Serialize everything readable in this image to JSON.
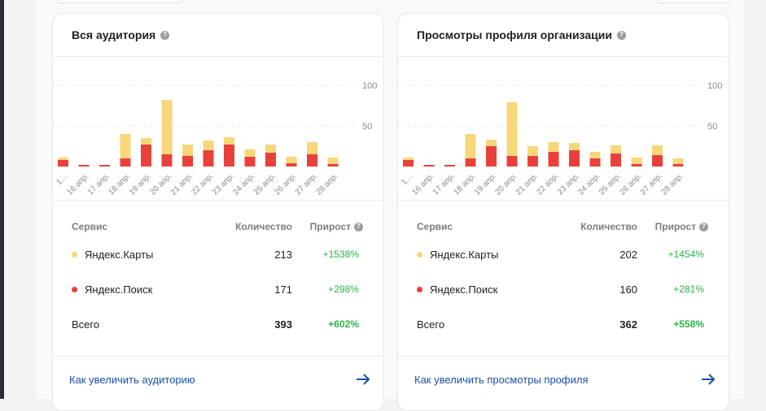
{
  "colors": {
    "yandex_maps": "#f7d77a",
    "yandex_search": "#e8413c",
    "growth": "#2bb34a",
    "link": "#1a4fa8"
  },
  "cards": [
    {
      "title": "Вся аудитория",
      "chart_data": {
        "type": "bar",
        "stacked": true,
        "categories": [
          "1…",
          "16 апр.",
          "17 апр.",
          "18 апр.",
          "19 апр.",
          "20 апр.",
          "21 апр.",
          "22 апр.",
          "23 апр.",
          "24 апр.",
          "25 апр.",
          "26 апр.",
          "27 апр.",
          "28 апр."
        ],
        "series": [
          {
            "key": "search",
            "color": "#e8413c",
            "values": [
              8,
              2,
              2,
              10,
              27,
              15,
              13,
              20,
              27,
              12,
              17,
              4,
              15,
              3
            ]
          },
          {
            "key": "maps",
            "color": "#f7d77a",
            "values": [
              3,
              0,
              0,
              30,
              8,
              67,
              14,
              12,
              9,
              9,
              10,
              8,
              15,
              8
            ]
          }
        ],
        "ylim": [
          0,
          100
        ],
        "yticks": [
          50,
          100
        ],
        "grid": true
      },
      "table": {
        "headers": {
          "service": "Сервис",
          "count": "Количество",
          "growth": "Прирост"
        },
        "rows": [
          {
            "name": "Яндекс.Карты",
            "count": "213",
            "growth": "+1538%",
            "dot": "maps"
          },
          {
            "name": "Яндекс.Поиск",
            "count": "171",
            "growth": "+298%",
            "dot": "search"
          }
        ],
        "total": {
          "name": "Всего",
          "count": "393",
          "growth": "+602%"
        }
      },
      "link_text": "Как увеличить аудиторию"
    },
    {
      "title": "Просмотры профиля организации",
      "chart_data": {
        "type": "bar",
        "stacked": true,
        "categories": [
          "1…",
          "16 апр.",
          "17 апр.",
          "18 апр.",
          "19 апр.",
          "20 апр.",
          "21 апр.",
          "22 апр.",
          "23 апр.",
          "24 апр.",
          "25 апр.",
          "26 апр.",
          "27 апр.",
          "28 апр."
        ],
        "series": [
          {
            "key": "search",
            "color": "#e8413c",
            "values": [
              8,
              2,
              2,
              10,
              25,
              13,
              13,
              18,
              20,
              10,
              16,
              3,
              14,
              3
            ]
          },
          {
            "key": "maps",
            "color": "#f7d77a",
            "values": [
              3,
              0,
              0,
              30,
              8,
              66,
              12,
              12,
              9,
              8,
              10,
              8,
              12,
              7
            ]
          }
        ],
        "ylim": [
          0,
          100
        ],
        "yticks": [
          50,
          100
        ],
        "grid": true
      },
      "table": {
        "headers": {
          "service": "Сервис",
          "count": "Количество",
          "growth": "Прирост"
        },
        "rows": [
          {
            "name": "Яндекс.Карты",
            "count": "202",
            "growth": "+1454%",
            "dot": "maps"
          },
          {
            "name": "Яндекс.Поиск",
            "count": "160",
            "growth": "+281%",
            "dot": "search"
          }
        ],
        "total": {
          "name": "Всего",
          "count": "362",
          "growth": "+558%"
        }
      },
      "link_text": "Как увеличить просмотры профиля"
    }
  ]
}
